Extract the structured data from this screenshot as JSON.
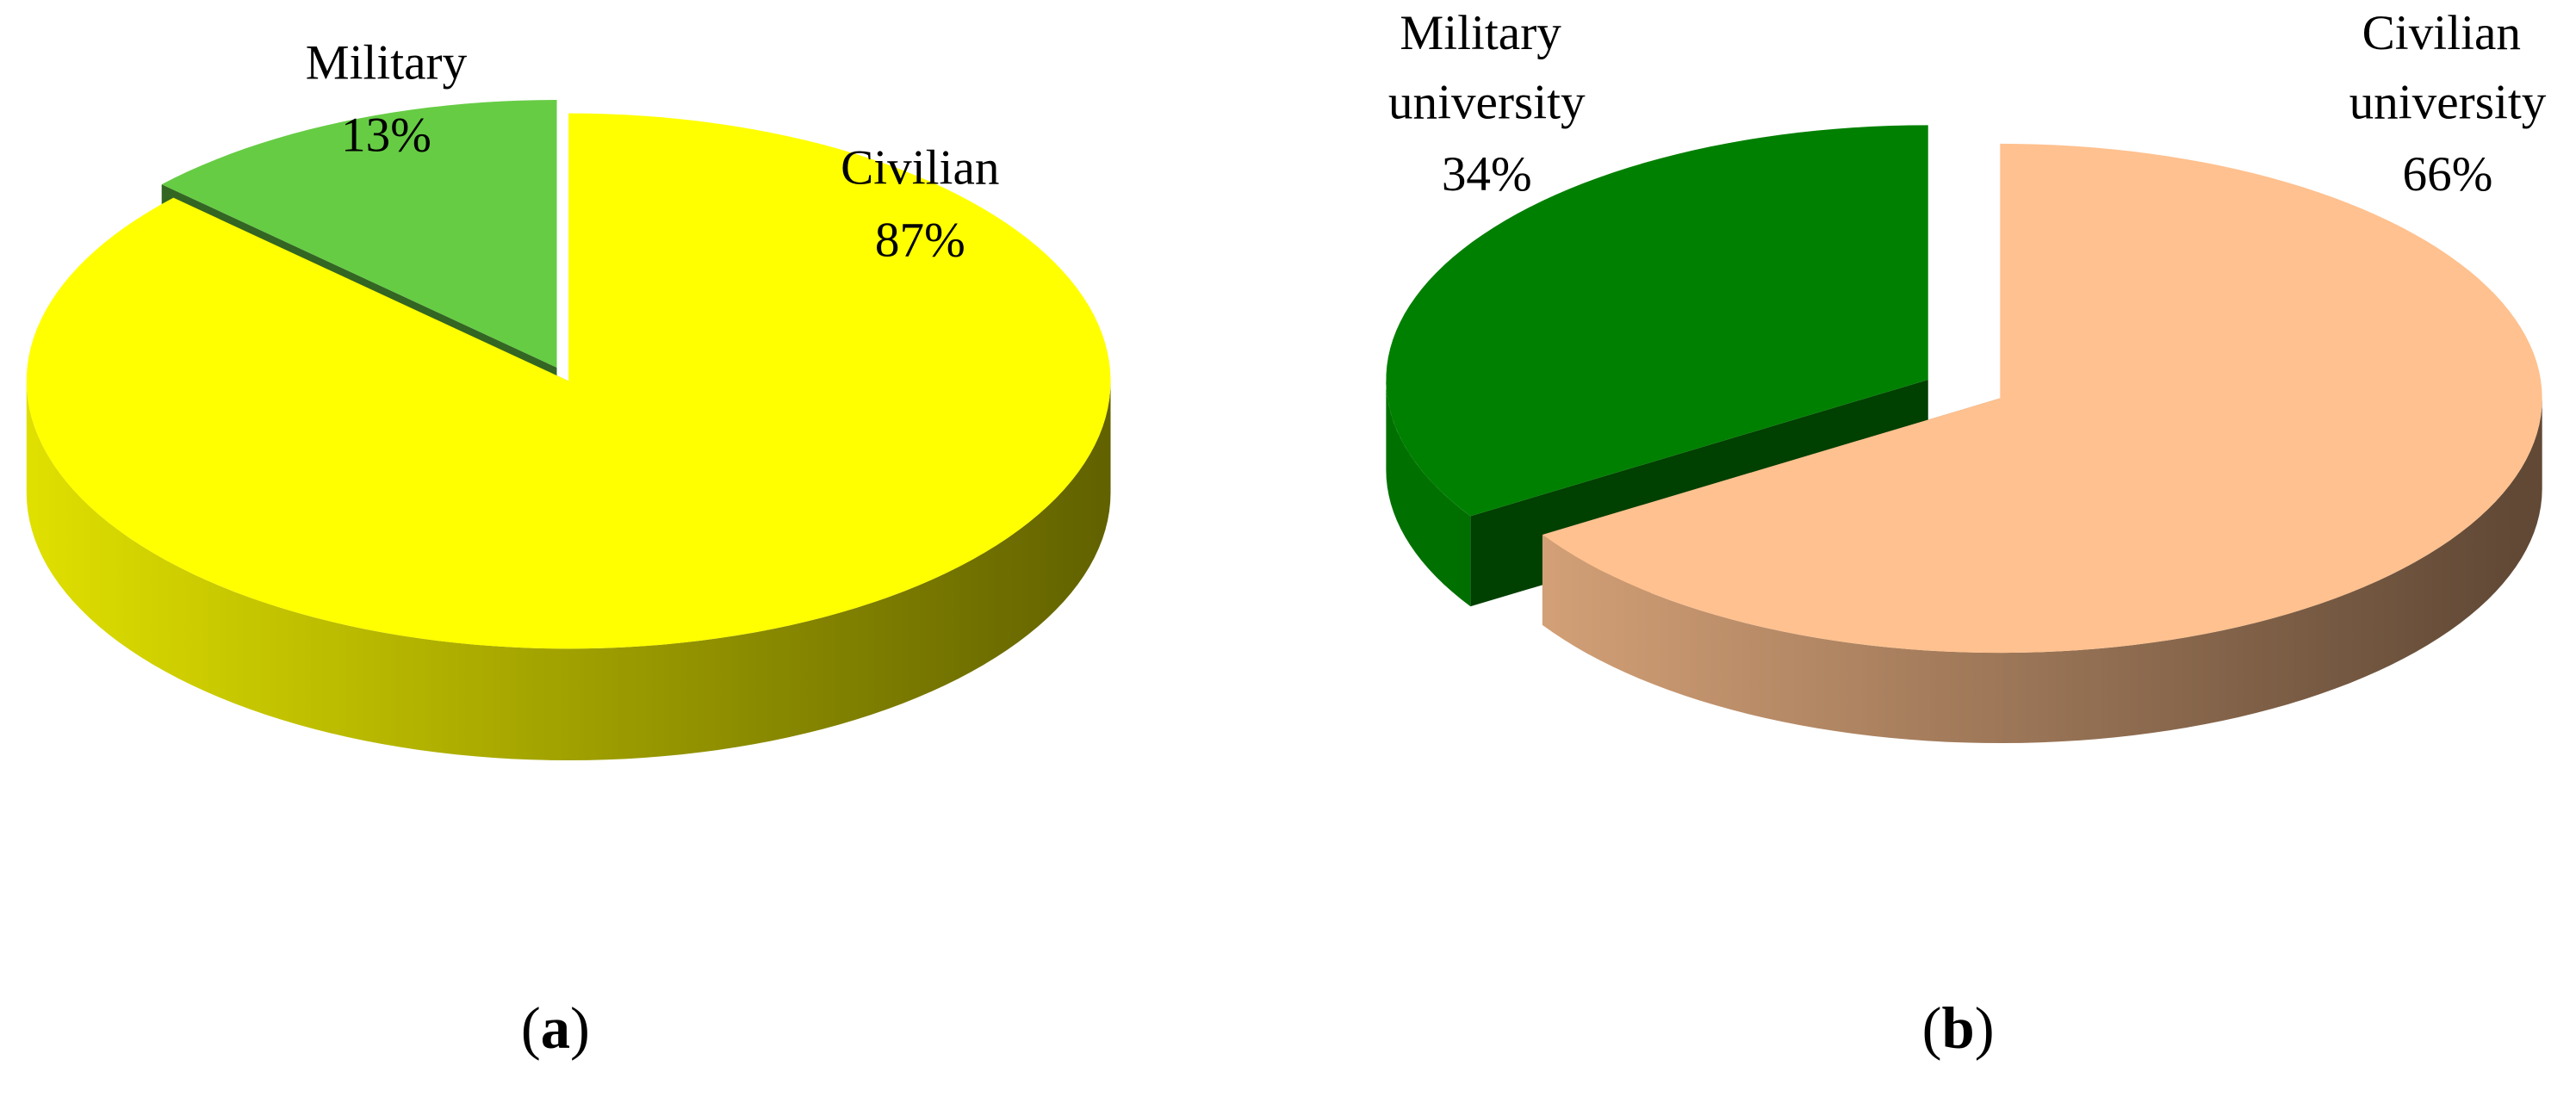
{
  "chart_data": [
    {
      "type": "pie",
      "caption": "(a)",
      "categories": [
        "Military",
        "Civilian"
      ],
      "values": [
        13,
        87
      ],
      "value_labels": [
        "13%",
        "87%"
      ],
      "colors": [
        "#66cc44",
        "#ffff00"
      ]
    },
    {
      "type": "pie",
      "caption": "(b)",
      "categories": [
        "Military university",
        "Civilian university"
      ],
      "values": [
        34,
        66
      ],
      "value_labels": [
        "34%",
        "66%"
      ],
      "colors": [
        "#008000",
        "#ffc18f"
      ]
    }
  ]
}
